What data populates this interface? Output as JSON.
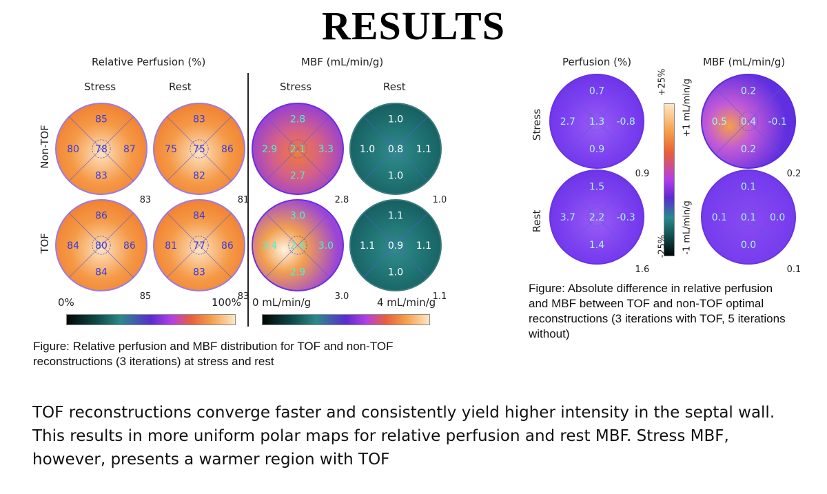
{
  "title": "RESULTS",
  "left_figure": {
    "group_relative": "Relative Perfusion (%)",
    "group_mbf": "MBF (mL/min/g)",
    "col_stress": "Stress",
    "col_rest": "Rest",
    "row_nontof": "Non-TOF",
    "row_tof": "TOF",
    "cbar_rel_min": "0%",
    "cbar_rel_max": "100%",
    "cbar_mbf_min": "0 mL/min/g",
    "cbar_mbf_max": "4 mL/min/g",
    "caption": "Figure: Relative perfusion and MBF distribution for TOF and non-TOF reconstructions (3  iterations) at stress and rest"
  },
  "right_figure": {
    "group_perfusion": "Perfusion (%)",
    "group_mbf": "MBF (mL/min/g)",
    "row_stress": "Stress",
    "row_rest": "Rest",
    "cbar_top_pct": "+25%",
    "cbar_bottom_pct": "-25%",
    "cbar_top_mbf": "+1 mL/min/g",
    "cbar_bottom_mbf": "-1 mL/min/g",
    "caption": "Figure: Absolute difference in relative perfusion and MBF between TOF and non-TOF optimal reconstructions (3 iterations with TOF, 5 iterations without)"
  },
  "summary": "TOF reconstructions converge faster and consistently yield higher intensity in the septal wall. This results in more uniform polar maps for relative perfusion and rest MBF. Stress MBF, however, presents a warmer region with TOF",
  "colors": {
    "perfusion_orange": "#f28a3a",
    "mbf_teal": "#1f6b6b",
    "diff_purple": "#7a3cf0",
    "value_text_blue": "#3b3bd9",
    "value_text_cyan": "#4ef0d0"
  },
  "chart_data": [
    {
      "type": "polar-map",
      "title": "Relative Perfusion (%)",
      "maps": [
        {
          "row": "Non-TOF",
          "col": "Stress",
          "top": "85",
          "left": "80",
          "center": "78",
          "right": "87",
          "bottom": "83",
          "global": "83",
          "theme": "perf"
        },
        {
          "row": "Non-TOF",
          "col": "Rest",
          "top": "83",
          "left": "75",
          "center": "75",
          "right": "86",
          "bottom": "82",
          "global": "81",
          "theme": "perf"
        },
        {
          "row": "TOF",
          "col": "Stress",
          "top": "86",
          "left": "84",
          "center": "80",
          "right": "86",
          "bottom": "84",
          "global": "85",
          "theme": "perf"
        },
        {
          "row": "TOF",
          "col": "Rest",
          "top": "84",
          "left": "81",
          "center": "77",
          "right": "86",
          "bottom": "83",
          "global": "83",
          "theme": "perf"
        }
      ]
    },
    {
      "type": "polar-map",
      "title": "MBF (mL/min/g)",
      "maps": [
        {
          "row": "Non-TOF",
          "col": "Stress",
          "top": "2.8",
          "left": "2.9",
          "center": "2.1",
          "right": "3.3",
          "bottom": "2.7",
          "global": "2.8",
          "theme": "mbfstress"
        },
        {
          "row": "Non-TOF",
          "col": "Rest",
          "top": "1.0",
          "left": "1.0",
          "center": "0.8",
          "right": "1.1",
          "bottom": "1.0",
          "global": "1.0",
          "theme": "teal"
        },
        {
          "row": "TOF",
          "col": "Stress",
          "top": "3.0",
          "left": "3.4",
          "center": "2.6",
          "right": "3.0",
          "bottom": "2.9",
          "global": "3.0",
          "theme": "mbfstress2"
        },
        {
          "row": "TOF",
          "col": "Rest",
          "top": "1.1",
          "left": "1.1",
          "center": "0.9",
          "right": "1.1",
          "bottom": "1.0",
          "global": "1.1",
          "theme": "teal"
        }
      ]
    },
    {
      "type": "polar-map",
      "title": "Absolute difference (TOF vs non-TOF)",
      "maps": [
        {
          "row": "Stress",
          "col": "Perfusion (%)",
          "top": "0.7",
          "left": "2.7",
          "center": "1.3",
          "right": "-0.8",
          "bottom": "0.9",
          "global": "0.9",
          "theme": "purple"
        },
        {
          "row": "Stress",
          "col": "MBF (mL/min/g)",
          "top": "0.2",
          "left": "0.5",
          "center": "0.4",
          "right": "-0.1",
          "bottom": "0.2",
          "global": "0.2",
          "theme": "purplewarm"
        },
        {
          "row": "Rest",
          "col": "Perfusion (%)",
          "top": "1.5",
          "left": "3.7",
          "center": "2.2",
          "right": "-0.3",
          "bottom": "1.4",
          "global": "1.6",
          "theme": "purple"
        },
        {
          "row": "Rest",
          "col": "MBF (mL/min/g)",
          "top": "0.1",
          "left": "0.1",
          "center": "0.1",
          "right": "0.0",
          "bottom": "0.0",
          "global": "0.1",
          "theme": "purpleflat"
        }
      ]
    }
  ]
}
